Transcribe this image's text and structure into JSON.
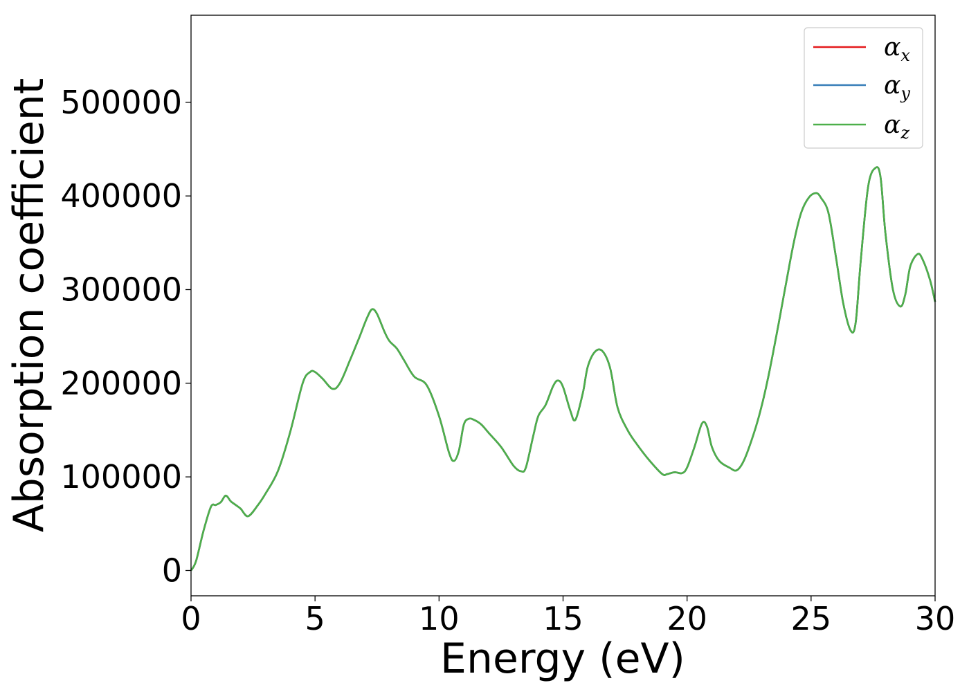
{
  "chart_data": {
    "type": "line",
    "title": "",
    "xlabel": "Energy (eV)",
    "ylabel": "Absorption coefficient",
    "xlim": [
      0,
      30
    ],
    "ylim": [
      -27000,
      593000
    ],
    "xticks": [
      0,
      5,
      10,
      15,
      20,
      25,
      30
    ],
    "xtick_labels": [
      "0",
      "5",
      "10",
      "15",
      "20",
      "25",
      "30"
    ],
    "yticks": [
      0,
      100000,
      200000,
      300000,
      400000,
      500000
    ],
    "ytick_labels": [
      "0",
      "100000",
      "200000",
      "300000",
      "400000",
      "500000"
    ],
    "grid": false,
    "legend_position": "top-right",
    "x": [
      0,
      0.2,
      0.5,
      0.8,
      1.0,
      1.2,
      1.4,
      1.6,
      1.8,
      2.0,
      2.3,
      2.7,
      3.0,
      3.5,
      4.0,
      4.5,
      4.8,
      5.0,
      5.3,
      5.7,
      6.0,
      6.4,
      6.8,
      7.1,
      7.3,
      7.5,
      7.8,
      8.0,
      8.3,
      8.6,
      9.0,
      9.5,
      10.0,
      10.4,
      10.6,
      10.8,
      11.0,
      11.2,
      11.4,
      11.7,
      12.0,
      12.5,
      13.0,
      13.3,
      13.5,
      13.8,
      14.0,
      14.3,
      14.6,
      14.8,
      15.0,
      15.3,
      15.5,
      15.8,
      16.0,
      16.3,
      16.6,
      16.9,
      17.2,
      17.6,
      18.0,
      18.5,
      19.0,
      19.2,
      19.5,
      19.8,
      20.0,
      20.3,
      20.6,
      20.8,
      21.0,
      21.3,
      21.7,
      22.0,
      22.3,
      22.7,
      23.0,
      23.3,
      23.7,
      24.0,
      24.3,
      24.6,
      24.9,
      25.2,
      25.4,
      25.7,
      26.0,
      26.3,
      26.6,
      26.8,
      27.0,
      27.3,
      27.6,
      27.8,
      28.0,
      28.3,
      28.6,
      28.8,
      29.0,
      29.3,
      29.5,
      29.8,
      30.0
    ],
    "y": [
      0,
      10000,
      42000,
      68000,
      70000,
      73000,
      80000,
      74000,
      70000,
      66000,
      58000,
      70000,
      82000,
      106000,
      148000,
      200000,
      212000,
      212000,
      205000,
      194000,
      200000,
      224000,
      250000,
      270000,
      279000,
      274000,
      255000,
      245000,
      237000,
      224000,
      207000,
      198000,
      165000,
      126000,
      117000,
      128000,
      156000,
      162000,
      161000,
      156000,
      147000,
      132000,
      112000,
      106000,
      110000,
      144000,
      165000,
      177000,
      197000,
      203000,
      196000,
      170000,
      161000,
      190000,
      218000,
      234000,
      234000,
      216000,
      174000,
      150000,
      134000,
      117000,
      103000,
      103000,
      105000,
      104000,
      110000,
      132000,
      157000,
      154000,
      132000,
      117000,
      110000,
      107000,
      118000,
      147000,
      175000,
      210000,
      265000,
      308000,
      350000,
      382000,
      398000,
      403000,
      398000,
      382000,
      335000,
      285000,
      256000,
      265000,
      330000,
      410000,
      430000,
      420000,
      360000,
      300000,
      282000,
      295000,
      325000,
      338000,
      332000,
      310000,
      287000
    ],
    "series": [
      {
        "name_base": "α",
        "name_sub": "x",
        "color": "#e41a1c"
      },
      {
        "name_base": "α",
        "name_sub": "y",
        "color": "#377eb8"
      },
      {
        "name_base": "α",
        "name_sub": "z",
        "color": "#4daf4a"
      }
    ]
  }
}
